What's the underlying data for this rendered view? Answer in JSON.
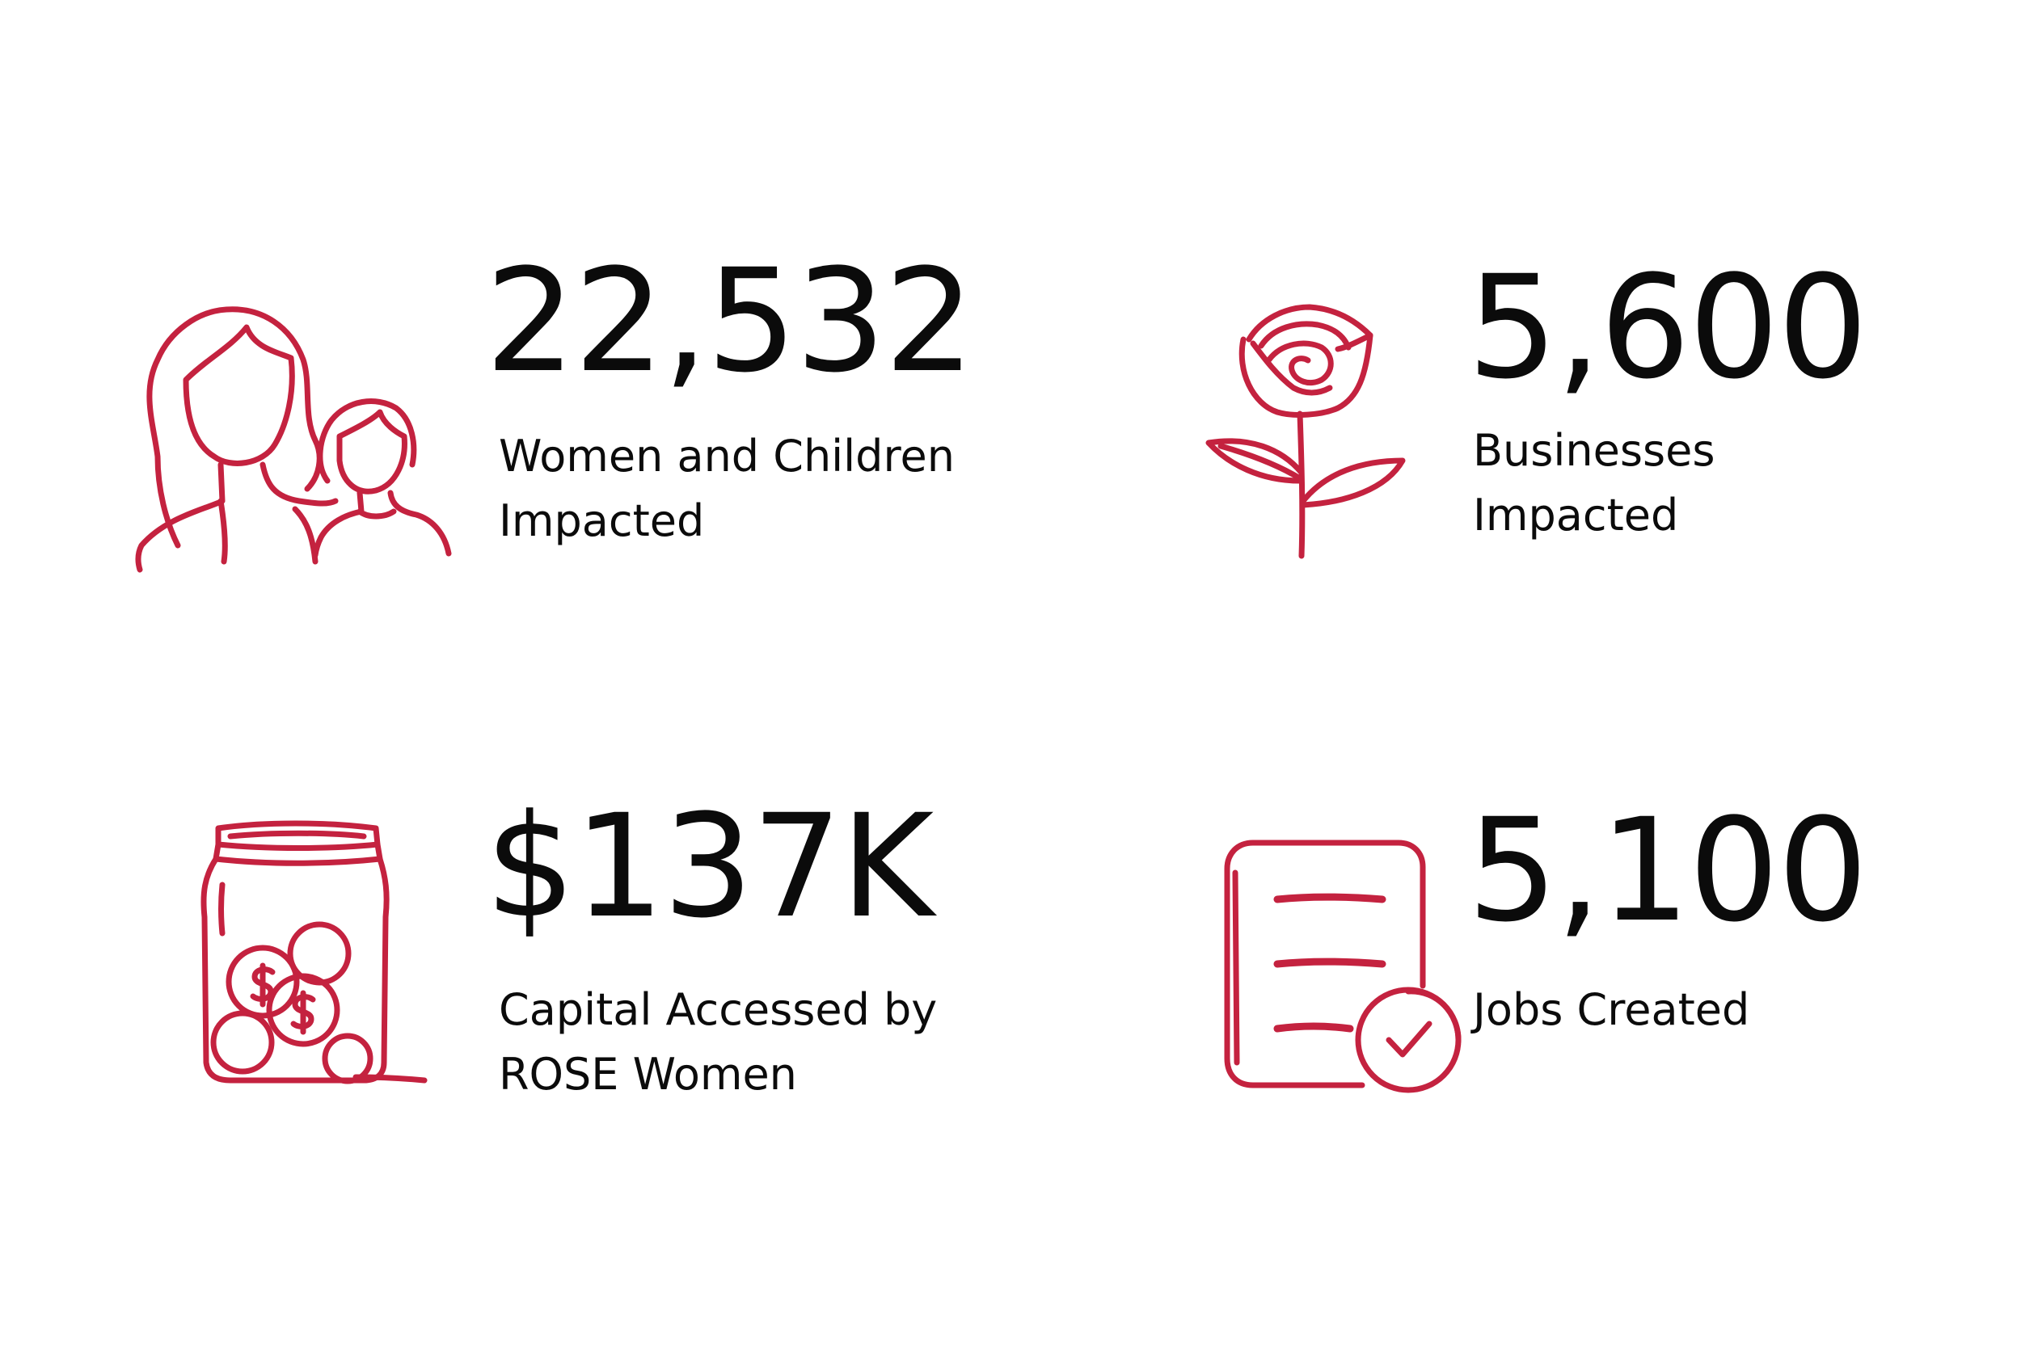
{
  "accent_color": "#c4223f",
  "stats": [
    {
      "icon": "woman-and-child-icon",
      "value": "22,532",
      "label_line1": "Women and Children",
      "label_line2": "Impacted"
    },
    {
      "icon": "rose-icon",
      "value": "5,600",
      "label_line1": "Businesses",
      "label_line2": "Impacted"
    },
    {
      "icon": "coin-jar-icon",
      "value": "$137K",
      "label_line1": "Capital Accessed by",
      "label_line2": "ROSE Women"
    },
    {
      "icon": "checklist-document-icon",
      "value": "5,100",
      "label_line1": "Jobs Created",
      "label_line2": ""
    }
  ]
}
